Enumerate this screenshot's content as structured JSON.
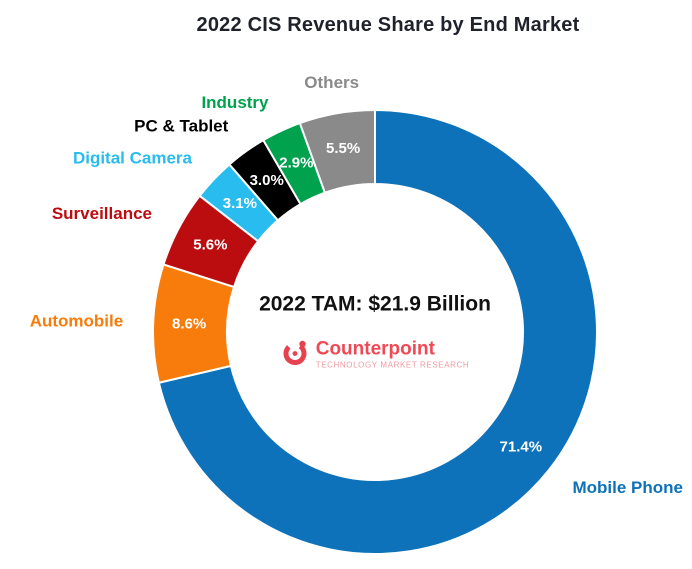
{
  "chart_data": {
    "type": "pie",
    "donut": true,
    "title": "2022 CIS Revenue Share by End Market",
    "center_label": "2022 TAM: $21.9 Billion",
    "start_angle_deg": 0,
    "direction": "clockwise",
    "legend_position": "outside-labels",
    "slices": [
      {
        "label": "Mobile Phone",
        "value": 71.4,
        "display": "71.4%",
        "color": "#0D72B9"
      },
      {
        "label": "Automobile",
        "value": 8.6,
        "display": "8.6%",
        "color": "#F87C0B"
      },
      {
        "label": "Surveillance",
        "value": 5.6,
        "display": "5.6%",
        "color": "#BB0D10"
      },
      {
        "label": "Digital Camera",
        "value": 3.1,
        "display": "3.1%",
        "color": "#29BCEE"
      },
      {
        "label": "PC & Tablet",
        "value": 3.0,
        "display": "3.0%",
        "color": "#000000"
      },
      {
        "label": "Industry",
        "value": 2.9,
        "display": "2.9%",
        "color": "#00A24E"
      },
      {
        "label": "Others",
        "value": 5.5,
        "display": "5.5%",
        "color": "#8A8A8A"
      }
    ]
  },
  "brand": {
    "name": "Counterpoint",
    "tagline": "Technology Market Research",
    "color": "#EF4956"
  }
}
